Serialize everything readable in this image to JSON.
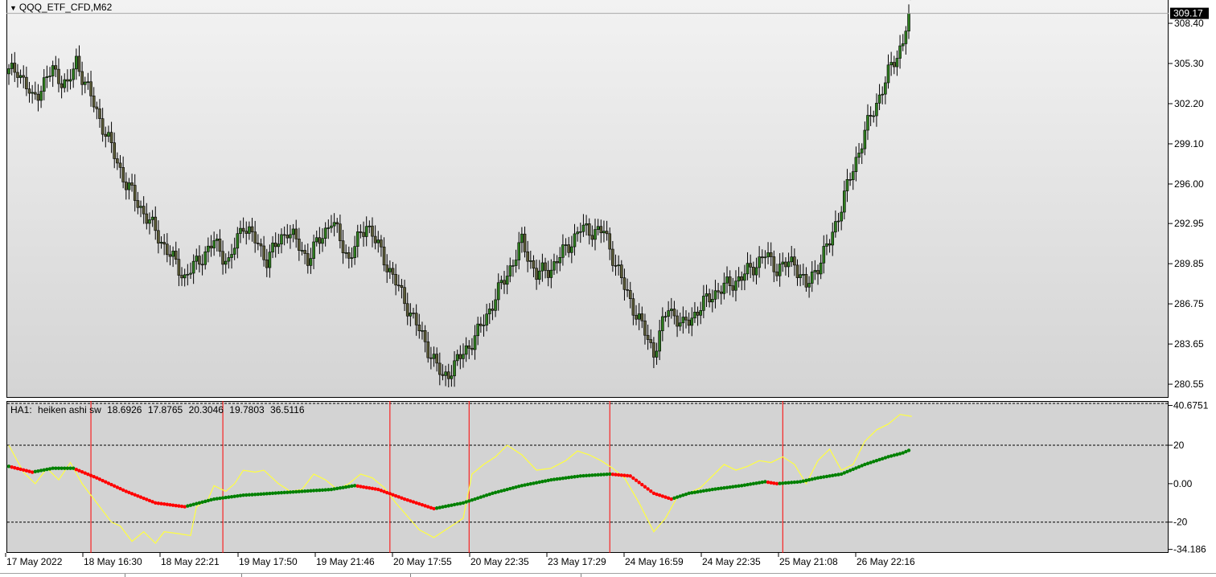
{
  "window": {
    "symbol_title": "QQQ_ETF_CFD,M62",
    "caret_icon": "triangle-down-icon"
  },
  "indicator": {
    "name": "HA1:",
    "label": "heiken ashi sw",
    "values": [
      "18.6926",
      "17.8765",
      "20.3046",
      "19.7803",
      "36.5116"
    ]
  },
  "price_axis": {
    "current_price": "309.17",
    "ticks": [
      "308.40",
      "305.30",
      "302.20",
      "299.10",
      "296.00",
      "292.95",
      "289.85",
      "286.75",
      "283.65",
      "280.55"
    ]
  },
  "indicator_axis": {
    "ticks": [
      "40.6751",
      "20",
      "0.00",
      "-20",
      "-34.186"
    ]
  },
  "time_axis": {
    "labels": [
      "17 May 2022",
      "18 May 16:30",
      "18 May 22:21",
      "19 May 17:50",
      "19 May 21:46",
      "20 May 17:55",
      "20 May 22:35",
      "23 May 17:29",
      "24 May 16:59",
      "24 May 22:35",
      "25 May 21:08",
      "26 May 22:16"
    ]
  },
  "colors": {
    "bull_candle": "#2e7d1e",
    "bear_candle": "#5a5a36",
    "current_price_bg": "#000000",
    "yellow_line": "#ffff40",
    "ha_green": "#008000",
    "ha_red": "#ff0000",
    "vline": "#ff0000"
  },
  "chart_data": [
    {
      "type": "candlestick",
      "title": "QQQ_ETF_CFD,M62",
      "ylim": [
        279.5,
        310.2
      ],
      "current_price": 309.17,
      "yticks": [
        308.4,
        305.3,
        302.2,
        299.1,
        296.0,
        292.95,
        289.85,
        286.75,
        283.65,
        280.55
      ],
      "close_anchors": [
        [
          0,
          304.6
        ],
        [
          3,
          304.9
        ],
        [
          8,
          302.5
        ],
        [
          15,
          304.8
        ],
        [
          20,
          303.5
        ],
        [
          23,
          305.5
        ],
        [
          40,
          296.0
        ],
        [
          55,
          290.5
        ],
        [
          60,
          288.8
        ],
        [
          70,
          291.5
        ],
        [
          75,
          289.9
        ],
        [
          80,
          293.0
        ],
        [
          88,
          290.2
        ],
        [
          95,
          292.5
        ],
        [
          102,
          290.2
        ],
        [
          110,
          293.2
        ],
        [
          116,
          290.2
        ],
        [
          122,
          293.0
        ],
        [
          135,
          287.0
        ],
        [
          148,
          281.0
        ],
        [
          152,
          282.0
        ],
        [
          160,
          284.5
        ],
        [
          172,
          290.0
        ],
        [
          175,
          291.5
        ],
        [
          180,
          289.0
        ],
        [
          185,
          289.5
        ],
        [
          195,
          292.5
        ],
        [
          203,
          292.3
        ],
        [
          210,
          288.0
        ],
        [
          220,
          283.0
        ],
        [
          225,
          286.5
        ],
        [
          230,
          285.0
        ],
        [
          240,
          287.5
        ],
        [
          250,
          288.8
        ],
        [
          258,
          290.5
        ],
        [
          262,
          289.5
        ],
        [
          268,
          290.0
        ],
        [
          272,
          288.0
        ],
        [
          280,
          291.5
        ],
        [
          292,
          300.0
        ],
        [
          300,
          304.5
        ],
        [
          305,
          307.0
        ],
        [
          307,
          309.17
        ]
      ]
    },
    {
      "type": "line",
      "title": "HA1: heiken ashi sw",
      "ylim": [
        -36,
        43
      ],
      "yticks": [
        40.6751,
        20,
        0,
        -20,
        -34.186
      ],
      "levels": [
        20,
        -20
      ],
      "series": [
        {
          "style": "line",
          "color": "#ffff40",
          "points": [
            [
              0,
              20
            ],
            [
              5,
              6
            ],
            [
              9,
              0
            ],
            [
              13,
              8
            ],
            [
              17,
              2
            ],
            [
              21,
              11
            ],
            [
              25,
              0
            ],
            [
              30,
              -10
            ],
            [
              35,
              -20
            ],
            [
              38,
              -22
            ],
            [
              42,
              -30
            ],
            [
              46,
              -25
            ],
            [
              50,
              -31
            ],
            [
              53,
              -25
            ],
            [
              58,
              -26
            ],
            [
              62,
              -27
            ],
            [
              64,
              -12
            ],
            [
              68,
              -8
            ],
            [
              70,
              -1
            ],
            [
              74,
              -4
            ],
            [
              77,
              0
            ],
            [
              80,
              7
            ],
            [
              84,
              6
            ],
            [
              87,
              7
            ],
            [
              92,
              0
            ],
            [
              96,
              -4
            ],
            [
              100,
              -3
            ],
            [
              104,
              5
            ],
            [
              108,
              2
            ],
            [
              112,
              -3
            ],
            [
              116,
              0
            ],
            [
              120,
              5
            ],
            [
              124,
              3
            ],
            [
              128,
              -2
            ],
            [
              132,
              -10
            ],
            [
              136,
              -17
            ],
            [
              140,
              -24
            ],
            [
              145,
              -28
            ],
            [
              150,
              -23
            ],
            [
              155,
              -18
            ],
            [
              158,
              5
            ],
            [
              162,
              10
            ],
            [
              166,
              14
            ],
            [
              170,
              20
            ],
            [
              175,
              15
            ],
            [
              180,
              7
            ],
            [
              185,
              8
            ],
            [
              190,
              12
            ],
            [
              194,
              17
            ],
            [
              198,
              15
            ],
            [
              202,
              12
            ],
            [
              206,
              8
            ],
            [
              210,
              3
            ],
            [
              215,
              -10
            ],
            [
              220,
              -25
            ],
            [
              224,
              -18
            ],
            [
              228,
              -7
            ],
            [
              232,
              -5
            ],
            [
              236,
              -2
            ],
            [
              240,
              4
            ],
            [
              244,
              10
            ],
            [
              248,
              7
            ],
            [
              252,
              9
            ],
            [
              256,
              12
            ],
            [
              260,
              11
            ],
            [
              264,
              14
            ],
            [
              268,
              10
            ],
            [
              272,
              0
            ],
            [
              276,
              12
            ],
            [
              280,
              18
            ],
            [
              284,
              7
            ],
            [
              288,
              10
            ],
            [
              292,
              22
            ],
            [
              296,
              28
            ],
            [
              300,
              31
            ],
            [
              304,
              36
            ],
            [
              308,
              35
            ]
          ]
        },
        {
          "style": "dots",
          "points": [
            [
              0,
              9
            ],
            [
              8,
              6
            ],
            [
              15,
              8
            ],
            [
              22,
              8
            ],
            [
              30,
              3
            ],
            [
              40,
              -4
            ],
            [
              50,
              -10
            ],
            [
              60,
              -12
            ],
            [
              70,
              -8
            ],
            [
              80,
              -6
            ],
            [
              90,
              -5
            ],
            [
              100,
              -4
            ],
            [
              110,
              -3
            ],
            [
              118,
              -1
            ],
            [
              126,
              -3
            ],
            [
              135,
              -8
            ],
            [
              145,
              -13
            ],
            [
              155,
              -10
            ],
            [
              165,
              -5
            ],
            [
              175,
              -1
            ],
            [
              185,
              2
            ],
            [
              195,
              4
            ],
            [
              205,
              5
            ],
            [
              212,
              4
            ],
            [
              220,
              -5
            ],
            [
              226,
              -8
            ],
            [
              232,
              -5
            ],
            [
              240,
              -3
            ],
            [
              250,
              -1
            ],
            [
              258,
              1
            ],
            [
              262,
              0
            ],
            [
              270,
              1
            ],
            [
              276,
              3
            ],
            [
              284,
              5
            ],
            [
              292,
              10
            ],
            [
              300,
              14
            ],
            [
              305,
              16
            ],
            [
              308,
              18
            ]
          ]
        }
      ],
      "vlines_at_bar": [
        28,
        73,
        130,
        157,
        205,
        264
      ]
    }
  ]
}
